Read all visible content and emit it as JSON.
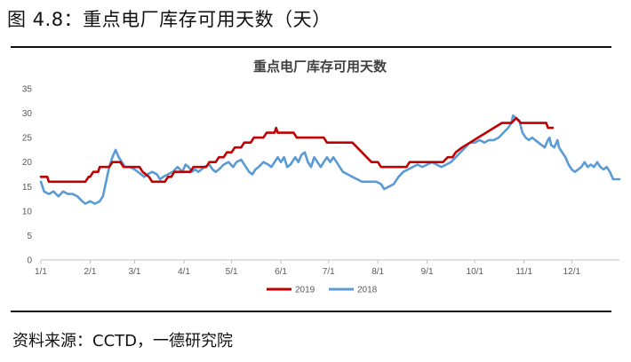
{
  "figure_title": "图 4.8：重点电厂库存可用天数（天）",
  "source_note": "资料来源：CCTD，一德研究院",
  "chart_data": {
    "type": "line",
    "title": "重点电厂库存可用天数",
    "xlabel": "",
    "ylabel": "",
    "ylim": [
      0,
      35
    ],
    "yticks": [
      0,
      5,
      10,
      15,
      20,
      25,
      30,
      35
    ],
    "xticks": [
      "1/1",
      "2/1",
      "3/1",
      "4/1",
      "5/1",
      "6/1",
      "7/1",
      "8/1",
      "9/1",
      "10/1",
      "11/1",
      "12/1"
    ],
    "xtick_days": [
      0,
      31,
      59,
      90,
      120,
      151,
      181,
      212,
      243,
      273,
      304,
      334
    ],
    "x_range_days": [
      0,
      364
    ],
    "grid": false,
    "legend_position": "bottom-center",
    "series": [
      {
        "name": "2019",
        "color": "#C00000",
        "points": [
          [
            0,
            17
          ],
          [
            4,
            17
          ],
          [
            5,
            16
          ],
          [
            28,
            16
          ],
          [
            30,
            17
          ],
          [
            31,
            17
          ],
          [
            33,
            18
          ],
          [
            36,
            18
          ],
          [
            37,
            19
          ],
          [
            43,
            19
          ],
          [
            45,
            20
          ],
          [
            50,
            20
          ],
          [
            52,
            19
          ],
          [
            62,
            19
          ],
          [
            64,
            18
          ],
          [
            68,
            17
          ],
          [
            70,
            16
          ],
          [
            78,
            16
          ],
          [
            80,
            17
          ],
          [
            82,
            17
          ],
          [
            84,
            18
          ],
          [
            94,
            18
          ],
          [
            96,
            19
          ],
          [
            104,
            19
          ],
          [
            106,
            20
          ],
          [
            110,
            20
          ],
          [
            112,
            21
          ],
          [
            115,
            21
          ],
          [
            117,
            22
          ],
          [
            120,
            22
          ],
          [
            122,
            23
          ],
          [
            126,
            23
          ],
          [
            128,
            24
          ],
          [
            132,
            24
          ],
          [
            134,
            25
          ],
          [
            140,
            25
          ],
          [
            142,
            26
          ],
          [
            147,
            26
          ],
          [
            148,
            27
          ],
          [
            149,
            26
          ],
          [
            159,
            26
          ],
          [
            161,
            25
          ],
          [
            178,
            25
          ],
          [
            180,
            24
          ],
          [
            196,
            24
          ],
          [
            199,
            23
          ],
          [
            202,
            22
          ],
          [
            205,
            21
          ],
          [
            208,
            20
          ],
          [
            212,
            20
          ],
          [
            214,
            19
          ],
          [
            230,
            19
          ],
          [
            232,
            20
          ],
          [
            253,
            20
          ],
          [
            256,
            21
          ],
          [
            259,
            21
          ],
          [
            261,
            22
          ],
          [
            265,
            23
          ],
          [
            270,
            24
          ],
          [
            275,
            25
          ],
          [
            280,
            26
          ],
          [
            285,
            27
          ],
          [
            290,
            28
          ],
          [
            296,
            28
          ],
          [
            299,
            29
          ],
          [
            302,
            28
          ],
          [
            318,
            28
          ],
          [
            319,
            27
          ],
          [
            322,
            27
          ]
        ]
      },
      {
        "name": "2018",
        "color": "#5B9BD5",
        "points": [
          [
            0,
            16
          ],
          [
            2,
            14
          ],
          [
            5,
            13.5
          ],
          [
            8,
            14
          ],
          [
            11,
            13
          ],
          [
            14,
            14
          ],
          [
            17,
            13.5
          ],
          [
            20,
            13.5
          ],
          [
            23,
            13
          ],
          [
            26,
            12
          ],
          [
            28,
            11.5
          ],
          [
            31,
            12
          ],
          [
            34,
            11.5
          ],
          [
            37,
            12
          ],
          [
            39,
            13
          ],
          [
            41,
            16
          ],
          [
            43,
            19
          ],
          [
            45,
            21
          ],
          [
            47,
            22.5
          ],
          [
            49,
            21
          ],
          [
            51,
            20
          ],
          [
            53,
            19
          ],
          [
            56,
            19
          ],
          [
            59,
            18.5
          ],
          [
            61,
            18
          ],
          [
            63,
            17.5
          ],
          [
            65,
            17
          ],
          [
            67,
            17.5
          ],
          [
            70,
            18
          ],
          [
            73,
            17.5
          ],
          [
            75,
            16.5
          ],
          [
            77,
            17
          ],
          [
            80,
            17.5
          ],
          [
            83,
            18
          ],
          [
            86,
            19
          ],
          [
            89,
            18
          ],
          [
            91,
            19.5
          ],
          [
            93,
            19
          ],
          [
            95,
            18
          ],
          [
            97,
            18.5
          ],
          [
            99,
            18
          ],
          [
            101,
            18.5
          ],
          [
            103,
            19
          ],
          [
            106,
            19.5
          ],
          [
            108,
            18.5
          ],
          [
            110,
            18
          ],
          [
            112,
            18.5
          ],
          [
            115,
            19.5
          ],
          [
            118,
            20
          ],
          [
            121,
            19
          ],
          [
            123,
            20
          ],
          [
            126,
            20.5
          ],
          [
            129,
            19
          ],
          [
            131,
            18
          ],
          [
            133,
            17.5
          ],
          [
            135,
            18.5
          ],
          [
            137,
            19
          ],
          [
            140,
            20
          ],
          [
            143,
            19.5
          ],
          [
            145,
            19
          ],
          [
            147,
            20
          ],
          [
            149,
            21
          ],
          [
            151,
            20
          ],
          [
            153,
            21
          ],
          [
            155,
            19
          ],
          [
            157,
            19.5
          ],
          [
            160,
            21
          ],
          [
            162,
            20
          ],
          [
            164,
            21.5
          ],
          [
            166,
            22
          ],
          [
            168,
            20
          ],
          [
            170,
            19
          ],
          [
            172,
            21
          ],
          [
            174,
            20
          ],
          [
            176,
            19
          ],
          [
            178,
            20
          ],
          [
            180,
            21
          ],
          [
            182,
            20
          ],
          [
            184,
            21
          ],
          [
            186,
            20
          ],
          [
            188,
            19
          ],
          [
            190,
            18
          ],
          [
            193,
            17.5
          ],
          [
            196,
            17
          ],
          [
            199,
            16.5
          ],
          [
            202,
            16
          ],
          [
            205,
            16
          ],
          [
            208,
            16
          ],
          [
            211,
            16
          ],
          [
            214,
            15.5
          ],
          [
            216,
            14.5
          ],
          [
            219,
            15
          ],
          [
            222,
            15.5
          ],
          [
            225,
            17
          ],
          [
            228,
            18
          ],
          [
            231,
            18.5
          ],
          [
            234,
            19
          ],
          [
            237,
            19.5
          ],
          [
            240,
            19
          ],
          [
            243,
            19.5
          ],
          [
            246,
            20
          ],
          [
            249,
            19.5
          ],
          [
            252,
            19
          ],
          [
            255,
            19.5
          ],
          [
            258,
            20
          ],
          [
            261,
            21
          ],
          [
            264,
            22
          ],
          [
            267,
            23
          ],
          [
            270,
            24
          ],
          [
            273,
            24
          ],
          [
            276,
            24.5
          ],
          [
            279,
            24
          ],
          [
            282,
            24.5
          ],
          [
            285,
            24.5
          ],
          [
            288,
            25
          ],
          [
            291,
            26
          ],
          [
            294,
            27
          ],
          [
            296,
            28
          ],
          [
            297,
            29.5
          ],
          [
            299,
            29
          ],
          [
            301,
            28.5
          ],
          [
            303,
            26
          ],
          [
            305,
            25
          ],
          [
            307,
            24.5
          ],
          [
            309,
            25
          ],
          [
            311,
            24.5
          ],
          [
            313,
            24
          ],
          [
            315,
            23.5
          ],
          [
            317,
            23
          ],
          [
            319,
            24.5
          ],
          [
            320,
            25
          ],
          [
            321,
            23.5
          ],
          [
            323,
            23
          ],
          [
            325,
            24.5
          ],
          [
            326,
            23
          ],
          [
            328,
            22
          ],
          [
            330,
            21
          ],
          [
            332,
            19.5
          ],
          [
            334,
            18.5
          ],
          [
            336,
            18
          ],
          [
            338,
            18.5
          ],
          [
            340,
            19
          ],
          [
            342,
            20
          ],
          [
            344,
            19
          ],
          [
            346,
            19.5
          ],
          [
            348,
            19
          ],
          [
            350,
            20
          ],
          [
            352,
            19
          ],
          [
            354,
            18.5
          ],
          [
            356,
            19
          ],
          [
            358,
            18
          ],
          [
            360,
            16.5
          ],
          [
            362,
            16.5
          ],
          [
            364,
            16.5
          ]
        ]
      }
    ]
  }
}
